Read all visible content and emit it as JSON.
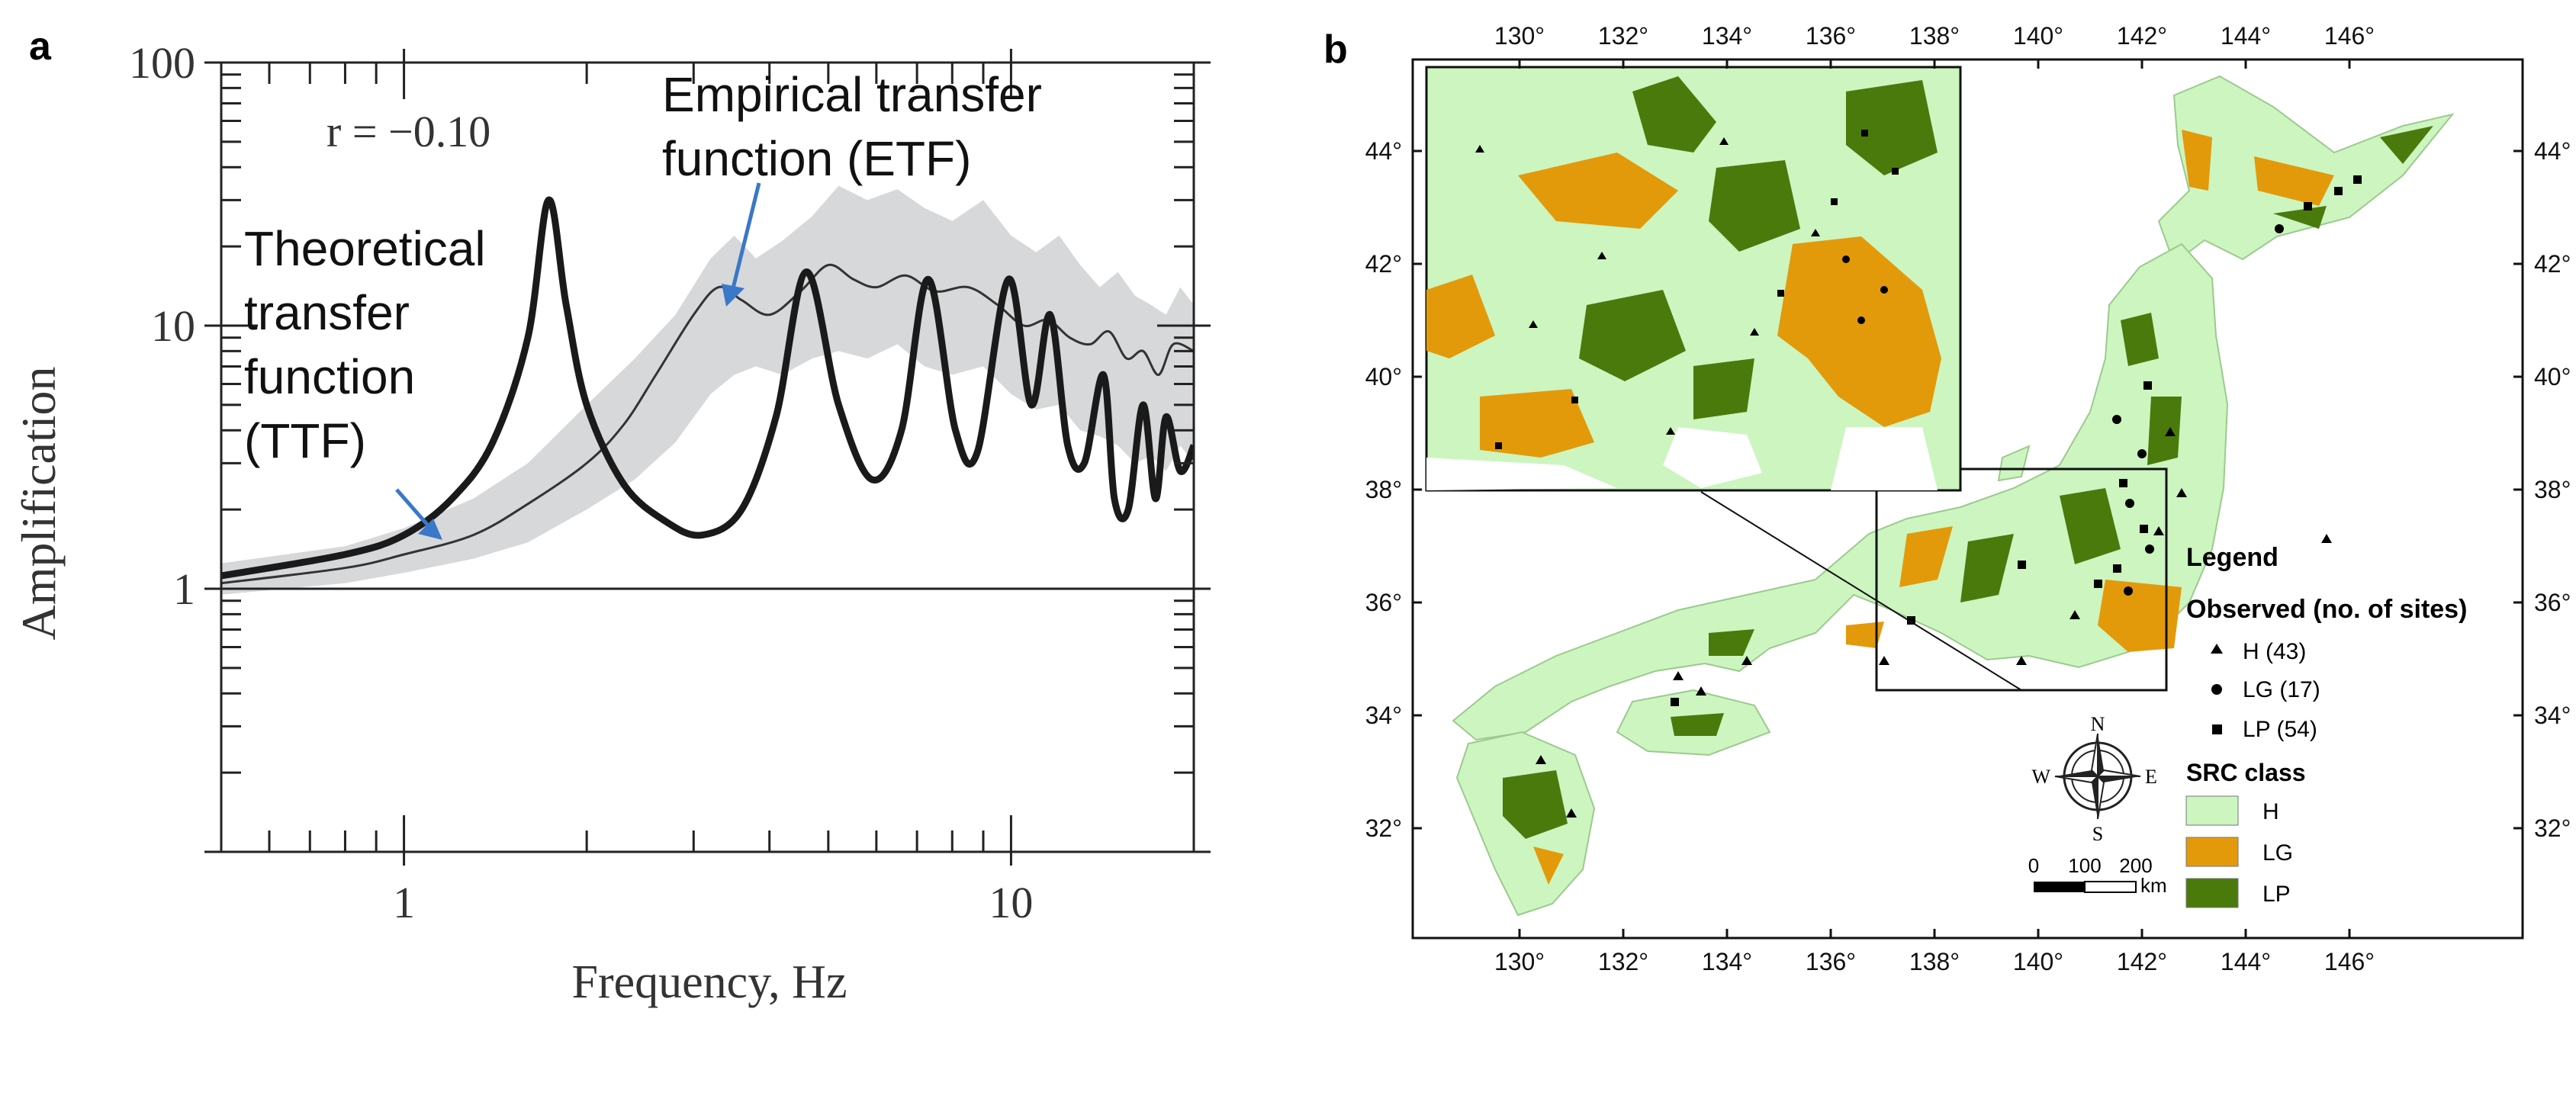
{
  "panel_a": {
    "letter": "a",
    "r_text": "r = −0.10",
    "xlabel": "Frequency, Hz",
    "ylabel": "Amplification",
    "annotation_etf": [
      "Empirical transfer",
      "function (ETF)"
    ],
    "annotation_ttf": [
      "Theoretical",
      "transfer",
      "function",
      "(TTF)"
    ]
  },
  "panel_b": {
    "letter": "b",
    "lon_labels": [
      "130°",
      "132°",
      "134°",
      "136°",
      "138°",
      "140°",
      "142°",
      "144°",
      "146°"
    ],
    "lat_labels": [
      "44°",
      "42°",
      "40°",
      "38°",
      "36°",
      "34°",
      "32°"
    ],
    "legend": {
      "title": "Legend",
      "observed_title": "Observed (no. of sites)",
      "observed": [
        "H (43)",
        "LG (17)",
        "LP (54)"
      ],
      "src_title": "SRC class",
      "src": [
        {
          "label": "H",
          "color": "#ccf5c0"
        },
        {
          "label": "LG",
          "color": "#e39a0a"
        },
        {
          "label": "LP",
          "color": "#4a7a0c"
        }
      ]
    },
    "compass": {
      "n": "N",
      "s": "S",
      "e": "E",
      "w": "W"
    },
    "scale": {
      "ticks": [
        "0",
        "100",
        "200"
      ],
      "unit": "km"
    }
  },
  "chart_data": [
    {
      "type": "line",
      "x_scale": "log",
      "y_scale": "log",
      "xlim": [
        0.5,
        20
      ],
      "ylim": [
        0.1,
        100
      ],
      "y_ticks": [
        "1",
        "10",
        "100"
      ],
      "x_ticks": [
        "1",
        "10"
      ],
      "series": [
        {
          "name": "Theoretical transfer function (TTF)",
          "x": [
            0.5,
            0.8,
            1.0,
            1.2,
            1.4,
            1.6,
            1.73,
            1.85,
            2.0,
            2.3,
            2.7,
            3.1,
            3.6,
            4.1,
            4.6,
            5.2,
            5.9,
            6.6,
            7.3,
            8.1,
            8.8,
            9.9,
            10.8,
            11.6,
            12.4,
            13.2,
            14.2,
            14.8,
            15.6,
            16.5,
            17.3,
            18.0,
            19.0,
            20.0
          ],
          "y": [
            1.12,
            1.35,
            1.6,
            2.2,
            3.6,
            9.0,
            30.0,
            12.0,
            5.0,
            2.5,
            1.8,
            1.6,
            2.0,
            4.5,
            16.0,
            5.0,
            2.6,
            4.0,
            15.0,
            4.0,
            3.3,
            15.0,
            5.0,
            11.0,
            3.5,
            3.0,
            6.5,
            2.2,
            2.0,
            5.0,
            2.2,
            4.5,
            2.8,
            3.5
          ]
        },
        {
          "name": "Empirical transfer function (ETF)",
          "x": [
            0.5,
            0.8,
            1.0,
            1.3,
            1.6,
            2.0,
            2.3,
            2.6,
            3.0,
            3.3,
            3.6,
            4.0,
            4.5,
            5.0,
            5.5,
            6.0,
            6.7,
            7.5,
            8.5,
            9.5,
            10.5,
            11.5,
            12.5,
            13.5,
            14.5,
            15.5,
            16.5,
            17.5,
            18.5,
            20.0
          ],
          "y": [
            1.05,
            1.2,
            1.35,
            1.6,
            2.1,
            3.0,
            4.2,
            6.5,
            11.0,
            14.0,
            12.5,
            11.0,
            13.5,
            17.0,
            15.0,
            14.0,
            15.5,
            13.5,
            14.0,
            12.0,
            10.0,
            10.5,
            9.0,
            8.5,
            9.5,
            7.5,
            8.0,
            6.5,
            8.5,
            8.0
          ]
        }
      ],
      "band_x": [
        0.5,
        0.8,
        1.0,
        1.3,
        1.6,
        2.0,
        2.4,
        2.8,
        3.2,
        3.5,
        3.8,
        4.2,
        4.7,
        5.2,
        5.8,
        6.5,
        7.2,
        8.0,
        9.0,
        10.0,
        11.0,
        12.0,
        13.0,
        14.0,
        15.0,
        16.0,
        17.0,
        18.0,
        19.0,
        20.0
      ],
      "band_upper": [
        1.25,
        1.45,
        1.7,
        2.2,
        3.0,
        5.0,
        7.5,
        11.0,
        18.0,
        22.0,
        18.0,
        21.0,
        26.0,
        34.0,
        30.0,
        33.0,
        28.0,
        25.0,
        30.0,
        22.0,
        19.0,
        22.0,
        17.0,
        14.0,
        16.0,
        13.0,
        12.0,
        11.0,
        14.0,
        12.0
      ],
      "band_lower": [
        0.95,
        1.05,
        1.15,
        1.3,
        1.5,
        2.0,
        2.6,
        3.6,
        5.5,
        6.5,
        7.0,
        6.5,
        7.5,
        8.0,
        7.5,
        8.5,
        7.0,
        6.5,
        7.0,
        5.5,
        4.8,
        5.0,
        4.0,
        3.8,
        3.5,
        3.0,
        3.2,
        2.8,
        3.5,
        3.0
      ]
    }
  ]
}
